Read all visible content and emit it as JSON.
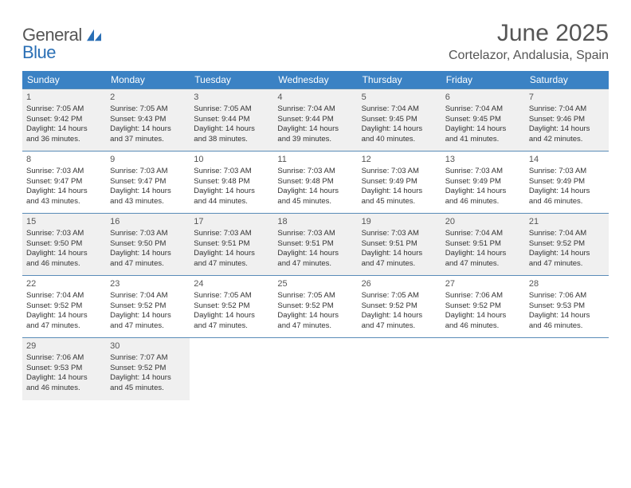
{
  "logo": {
    "word1": "General",
    "word2": "Blue"
  },
  "title": "June 2025",
  "location": "Cortelazor, Andalusia, Spain",
  "colors": {
    "header_bg": "#3b82c4",
    "header_text": "#ffffff",
    "border": "#5a8cb8",
    "shaded_row": "#f0f0f0",
    "logo_blue": "#2a6fb5",
    "text": "#333333"
  },
  "weekday_labels": [
    "Sunday",
    "Monday",
    "Tuesday",
    "Wednesday",
    "Thursday",
    "Friday",
    "Saturday"
  ],
  "weeks": [
    {
      "shaded": true,
      "days": [
        {
          "n": "1",
          "sunrise": "Sunrise: 7:05 AM",
          "sunset": "Sunset: 9:42 PM",
          "day1": "Daylight: 14 hours",
          "day2": "and 36 minutes."
        },
        {
          "n": "2",
          "sunrise": "Sunrise: 7:05 AM",
          "sunset": "Sunset: 9:43 PM",
          "day1": "Daylight: 14 hours",
          "day2": "and 37 minutes."
        },
        {
          "n": "3",
          "sunrise": "Sunrise: 7:05 AM",
          "sunset": "Sunset: 9:44 PM",
          "day1": "Daylight: 14 hours",
          "day2": "and 38 minutes."
        },
        {
          "n": "4",
          "sunrise": "Sunrise: 7:04 AM",
          "sunset": "Sunset: 9:44 PM",
          "day1": "Daylight: 14 hours",
          "day2": "and 39 minutes."
        },
        {
          "n": "5",
          "sunrise": "Sunrise: 7:04 AM",
          "sunset": "Sunset: 9:45 PM",
          "day1": "Daylight: 14 hours",
          "day2": "and 40 minutes."
        },
        {
          "n": "6",
          "sunrise": "Sunrise: 7:04 AM",
          "sunset": "Sunset: 9:45 PM",
          "day1": "Daylight: 14 hours",
          "day2": "and 41 minutes."
        },
        {
          "n": "7",
          "sunrise": "Sunrise: 7:04 AM",
          "sunset": "Sunset: 9:46 PM",
          "day1": "Daylight: 14 hours",
          "day2": "and 42 minutes."
        }
      ]
    },
    {
      "shaded": false,
      "days": [
        {
          "n": "8",
          "sunrise": "Sunrise: 7:03 AM",
          "sunset": "Sunset: 9:47 PM",
          "day1": "Daylight: 14 hours",
          "day2": "and 43 minutes."
        },
        {
          "n": "9",
          "sunrise": "Sunrise: 7:03 AM",
          "sunset": "Sunset: 9:47 PM",
          "day1": "Daylight: 14 hours",
          "day2": "and 43 minutes."
        },
        {
          "n": "10",
          "sunrise": "Sunrise: 7:03 AM",
          "sunset": "Sunset: 9:48 PM",
          "day1": "Daylight: 14 hours",
          "day2": "and 44 minutes."
        },
        {
          "n": "11",
          "sunrise": "Sunrise: 7:03 AM",
          "sunset": "Sunset: 9:48 PM",
          "day1": "Daylight: 14 hours",
          "day2": "and 45 minutes."
        },
        {
          "n": "12",
          "sunrise": "Sunrise: 7:03 AM",
          "sunset": "Sunset: 9:49 PM",
          "day1": "Daylight: 14 hours",
          "day2": "and 45 minutes."
        },
        {
          "n": "13",
          "sunrise": "Sunrise: 7:03 AM",
          "sunset": "Sunset: 9:49 PM",
          "day1": "Daylight: 14 hours",
          "day2": "and 46 minutes."
        },
        {
          "n": "14",
          "sunrise": "Sunrise: 7:03 AM",
          "sunset": "Sunset: 9:49 PM",
          "day1": "Daylight: 14 hours",
          "day2": "and 46 minutes."
        }
      ]
    },
    {
      "shaded": true,
      "days": [
        {
          "n": "15",
          "sunrise": "Sunrise: 7:03 AM",
          "sunset": "Sunset: 9:50 PM",
          "day1": "Daylight: 14 hours",
          "day2": "and 46 minutes."
        },
        {
          "n": "16",
          "sunrise": "Sunrise: 7:03 AM",
          "sunset": "Sunset: 9:50 PM",
          "day1": "Daylight: 14 hours",
          "day2": "and 47 minutes."
        },
        {
          "n": "17",
          "sunrise": "Sunrise: 7:03 AM",
          "sunset": "Sunset: 9:51 PM",
          "day1": "Daylight: 14 hours",
          "day2": "and 47 minutes."
        },
        {
          "n": "18",
          "sunrise": "Sunrise: 7:03 AM",
          "sunset": "Sunset: 9:51 PM",
          "day1": "Daylight: 14 hours",
          "day2": "and 47 minutes."
        },
        {
          "n": "19",
          "sunrise": "Sunrise: 7:03 AM",
          "sunset": "Sunset: 9:51 PM",
          "day1": "Daylight: 14 hours",
          "day2": "and 47 minutes."
        },
        {
          "n": "20",
          "sunrise": "Sunrise: 7:04 AM",
          "sunset": "Sunset: 9:51 PM",
          "day1": "Daylight: 14 hours",
          "day2": "and 47 minutes."
        },
        {
          "n": "21",
          "sunrise": "Sunrise: 7:04 AM",
          "sunset": "Sunset: 9:52 PM",
          "day1": "Daylight: 14 hours",
          "day2": "and 47 minutes."
        }
      ]
    },
    {
      "shaded": false,
      "days": [
        {
          "n": "22",
          "sunrise": "Sunrise: 7:04 AM",
          "sunset": "Sunset: 9:52 PM",
          "day1": "Daylight: 14 hours",
          "day2": "and 47 minutes."
        },
        {
          "n": "23",
          "sunrise": "Sunrise: 7:04 AM",
          "sunset": "Sunset: 9:52 PM",
          "day1": "Daylight: 14 hours",
          "day2": "and 47 minutes."
        },
        {
          "n": "24",
          "sunrise": "Sunrise: 7:05 AM",
          "sunset": "Sunset: 9:52 PM",
          "day1": "Daylight: 14 hours",
          "day2": "and 47 minutes."
        },
        {
          "n": "25",
          "sunrise": "Sunrise: 7:05 AM",
          "sunset": "Sunset: 9:52 PM",
          "day1": "Daylight: 14 hours",
          "day2": "and 47 minutes."
        },
        {
          "n": "26",
          "sunrise": "Sunrise: 7:05 AM",
          "sunset": "Sunset: 9:52 PM",
          "day1": "Daylight: 14 hours",
          "day2": "and 47 minutes."
        },
        {
          "n": "27",
          "sunrise": "Sunrise: 7:06 AM",
          "sunset": "Sunset: 9:52 PM",
          "day1": "Daylight: 14 hours",
          "day2": "and 46 minutes."
        },
        {
          "n": "28",
          "sunrise": "Sunrise: 7:06 AM",
          "sunset": "Sunset: 9:53 PM",
          "day1": "Daylight: 14 hours",
          "day2": "and 46 minutes."
        }
      ]
    },
    {
      "shaded": true,
      "days": [
        {
          "n": "29",
          "sunrise": "Sunrise: 7:06 AM",
          "sunset": "Sunset: 9:53 PM",
          "day1": "Daylight: 14 hours",
          "day2": "and 46 minutes."
        },
        {
          "n": "30",
          "sunrise": "Sunrise: 7:07 AM",
          "sunset": "Sunset: 9:52 PM",
          "day1": "Daylight: 14 hours",
          "day2": "and 45 minutes."
        },
        null,
        null,
        null,
        null,
        null
      ]
    }
  ]
}
